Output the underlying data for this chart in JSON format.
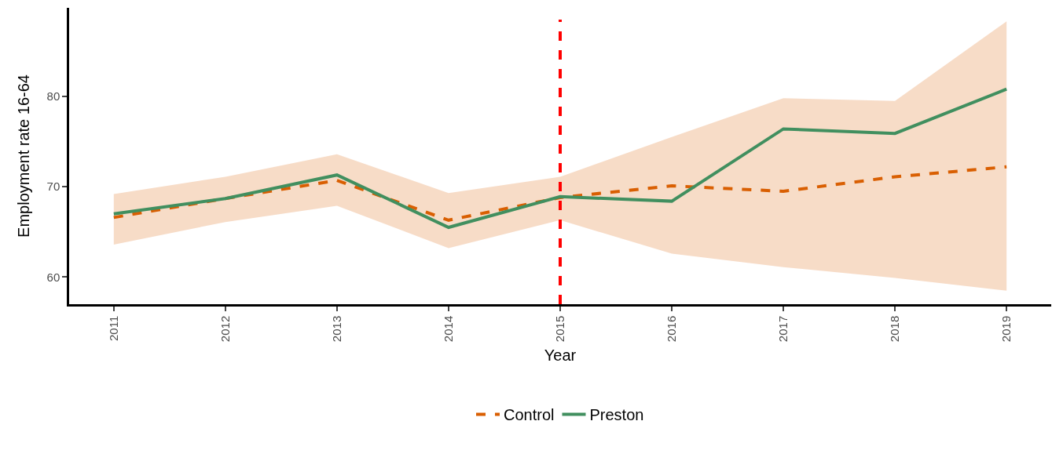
{
  "chart_data": {
    "type": "line",
    "xlabel": "Year",
    "ylabel": "Employment rate 16-64",
    "x": [
      2011,
      2012,
      2013,
      2014,
      2015,
      2016,
      2017,
      2018,
      2019
    ],
    "xlim": [
      2010.6,
      2019.4
    ],
    "xticks": [
      2011,
      2012,
      2013,
      2014,
      2015,
      2016,
      2017,
      2018,
      2019
    ],
    "ylim": [
      57,
      89.8
    ],
    "yticks": [
      60,
      70,
      80
    ],
    "series": [
      {
        "name": "Control",
        "color": "#d95f02",
        "line_style": "dashed",
        "values": [
          66.6,
          68.7,
          70.7,
          66.3,
          68.8,
          70.1,
          69.5,
          71.1,
          72.2
        ],
        "lower": [
          63.6,
          66.1,
          67.9,
          63.2,
          66.3,
          62.6,
          61.1,
          59.9,
          58.5
        ],
        "upper": [
          69.2,
          71.1,
          73.6,
          69.3,
          71.1,
          75.5,
          79.8,
          79.5,
          88.3
        ]
      },
      {
        "name": "Preston",
        "color": "#418f5f",
        "line_style": "solid",
        "values": [
          67.0,
          68.7,
          71.3,
          65.5,
          68.9,
          68.4,
          76.4,
          75.9,
          80.8
        ]
      }
    ],
    "ref_lines": [
      {
        "axis": "x",
        "value": 2015,
        "color": "#ff0000",
        "line_style": "dashed"
      }
    ],
    "grid": false,
    "legend": "bottom",
    "marker": "none"
  }
}
